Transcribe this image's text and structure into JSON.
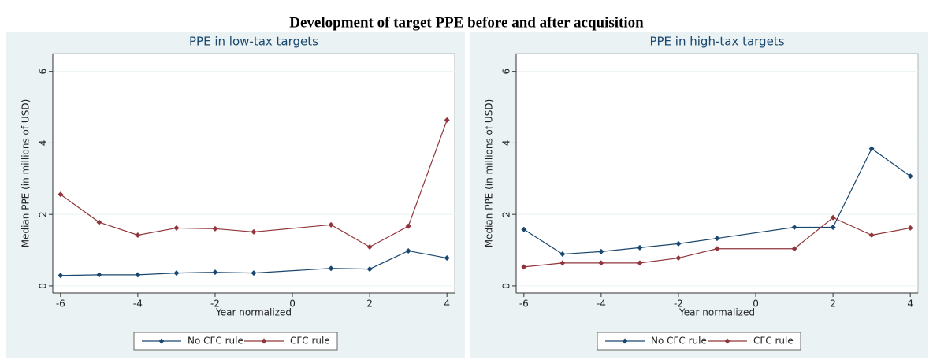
{
  "title": "Development of target PPE before and after acquisition",
  "chart_data": [
    {
      "type": "line",
      "title": "PPE in low-tax targets",
      "x_label": "Year normalized",
      "y_label": "Median PPE (in millions of USD)",
      "x": [
        -6,
        -5,
        -4,
        -3,
        -2,
        -1,
        1,
        2,
        3,
        4
      ],
      "series": [
        {
          "name": "No CFC rule",
          "color": "#1a476f",
          "values": [
            0.29,
            0.31,
            0.31,
            0.36,
            0.38,
            0.36,
            0.49,
            0.47,
            0.98,
            0.78
          ]
        },
        {
          "name": "CFC rule",
          "color": "#90353b",
          "values": [
            2.56,
            1.78,
            1.42,
            1.62,
            1.6,
            1.51,
            1.71,
            1.09,
            1.67,
            4.64
          ]
        }
      ],
      "xlim": [
        -6.2,
        4.2
      ],
      "xticks": [
        -6,
        -4,
        -2,
        0,
        2,
        4
      ],
      "ylim": [
        -0.2,
        6.5
      ],
      "yticks": [
        0,
        2,
        4,
        6
      ],
      "grid": true
    },
    {
      "type": "line",
      "title": "PPE in high-tax targets",
      "x_label": "Year normalized",
      "y_label": "Median PPE (in millions of USD)",
      "x": [
        -6,
        -5,
        -4,
        -3,
        -2,
        -1,
        1,
        2,
        3,
        4
      ],
      "series": [
        {
          "name": "No CFC rule",
          "color": "#1a476f",
          "values": [
            1.58,
            0.89,
            0.96,
            1.07,
            1.18,
            1.33,
            1.64,
            1.64,
            3.84,
            3.07
          ]
        },
        {
          "name": "CFC rule",
          "color": "#90353b",
          "values": [
            0.53,
            0.64,
            0.64,
            0.64,
            0.78,
            1.04,
            1.04,
            1.91,
            1.42,
            1.62
          ]
        }
      ],
      "xlim": [
        -6.2,
        4.2
      ],
      "xticks": [
        -6,
        -4,
        -2,
        0,
        2,
        4
      ],
      "ylim": [
        -0.2,
        6.5
      ],
      "yticks": [
        0,
        2,
        4,
        6
      ],
      "grid": true
    }
  ]
}
